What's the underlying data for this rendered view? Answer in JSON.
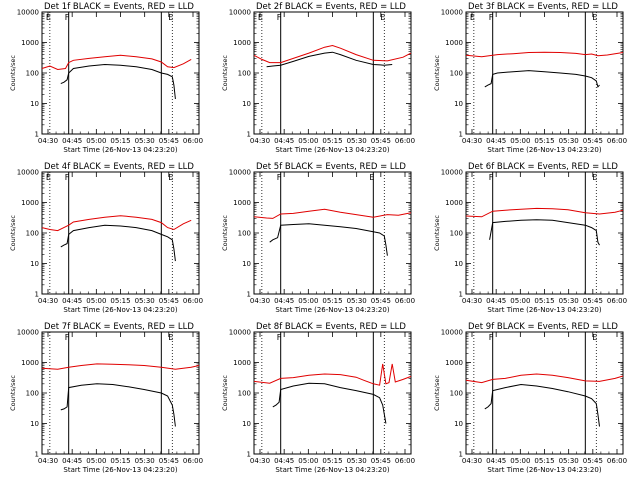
{
  "page": {
    "background": "#ffffff"
  },
  "colors": {
    "events": "#000000",
    "lld": "#e00000"
  },
  "chart_data": [
    {
      "type": "line",
      "title": "Det 1f BLACK = Events, RED = LLD",
      "xlabel": "Start Time (26-Nov-13 04:23:20)",
      "ylabel": "Counts/sec",
      "x_ticks": [
        "04:30",
        "04:45",
        "05:00",
        "05:15",
        "05:30",
        "05:45",
        "06:00"
      ],
      "y_ticks": [
        "1",
        "10",
        "100",
        "1000",
        "10000"
      ],
      "ylim": [
        1,
        10000
      ],
      "log_y": true,
      "xlim_min": [
        0,
        100
      ],
      "markers": [
        {
          "t": 5,
          "label": "E",
          "style": "dotted"
        },
        {
          "t": 17,
          "label": "F",
          "style": "solid"
        },
        {
          "t": 76,
          "label": "",
          "style": "solid"
        },
        {
          "t": 83,
          "label": "E",
          "style": "dotted"
        }
      ],
      "series": [
        {
          "color": "#e00000",
          "x": [
            0,
            5,
            10,
            15,
            17,
            20,
            30,
            40,
            50,
            60,
            70,
            76,
            80,
            84,
            90,
            95
          ],
          "y": [
            140,
            170,
            130,
            140,
            220,
            260,
            300,
            340,
            380,
            340,
            290,
            230,
            160,
            150,
            200,
            280
          ]
        },
        {
          "color": "#000000",
          "x": [
            12,
            14,
            16,
            17,
            20,
            30,
            40,
            50,
            60,
            70,
            76,
            80,
            83,
            84,
            85
          ],
          "y": [
            45,
            50,
            60,
            100,
            140,
            170,
            190,
            180,
            160,
            130,
            100,
            90,
            75,
            40,
            14
          ]
        }
      ]
    },
    {
      "type": "line",
      "title": "Det 2f BLACK = Events, RED = LLD",
      "xlabel": "Start Time (26-Nov-13 04:23:20)",
      "ylabel": "Counts/sec",
      "x_ticks": [
        "04:30",
        "04:45",
        "05:00",
        "05:15",
        "05:30",
        "05:45",
        "06:00"
      ],
      "y_ticks": [
        "1",
        "10",
        "100",
        "1000",
        "10000"
      ],
      "ylim": [
        1,
        10000
      ],
      "log_y": true,
      "xlim_min": [
        0,
        100
      ],
      "markers": [
        {
          "t": 5,
          "label": "E",
          "style": "dotted"
        },
        {
          "t": 17,
          "label": "F",
          "style": "solid"
        },
        {
          "t": 76,
          "label": "",
          "style": "solid"
        },
        {
          "t": 83,
          "label": "E",
          "style": "dotted"
        }
      ],
      "series": [
        {
          "color": "#e00000",
          "x": [
            0,
            5,
            10,
            17,
            25,
            35,
            45,
            50,
            55,
            65,
            76,
            85,
            95,
            100
          ],
          "y": [
            380,
            280,
            220,
            220,
            300,
            450,
            700,
            800,
            650,
            400,
            260,
            250,
            330,
            450
          ]
        },
        {
          "color": "#000000",
          "x": [
            8,
            12,
            17,
            25,
            35,
            45,
            50,
            55,
            65,
            76,
            83,
            88
          ],
          "y": [
            160,
            170,
            180,
            240,
            350,
            450,
            480,
            400,
            260,
            190,
            180,
            190
          ]
        }
      ]
    },
    {
      "type": "line",
      "title": "Det 3f BLACK = Events, RED = LLD",
      "xlabel": "Start Time (26-Nov-13 04:23:20)",
      "ylabel": "Counts/sec",
      "x_ticks": [
        "04:30",
        "04:45",
        "05:00",
        "05:15",
        "05:30",
        "05:45",
        "06:00"
      ],
      "y_ticks": [
        "1",
        "10",
        "100",
        "1000",
        "10000"
      ],
      "ylim": [
        1,
        10000
      ],
      "log_y": true,
      "xlim_min": [
        0,
        100
      ],
      "markers": [
        {
          "t": 5,
          "label": "E",
          "style": "dotted"
        },
        {
          "t": 17,
          "label": "F",
          "style": "solid"
        },
        {
          "t": 76,
          "label": "",
          "style": "solid"
        },
        {
          "t": 83,
          "label": "E",
          "style": "dotted"
        }
      ],
      "series": [
        {
          "color": "#e00000",
          "x": [
            0,
            10,
            20,
            30,
            40,
            50,
            60,
            70,
            76,
            80,
            84,
            90,
            95,
            100
          ],
          "y": [
            380,
            340,
            400,
            430,
            470,
            480,
            470,
            440,
            400,
            420,
            370,
            390,
            430,
            470
          ]
        },
        {
          "color": "#000000",
          "x": [
            12,
            14,
            16,
            17,
            20,
            30,
            40,
            50,
            60,
            70,
            76,
            80,
            83,
            84,
            85
          ],
          "y": [
            35,
            40,
            45,
            90,
            100,
            110,
            120,
            110,
            100,
            90,
            80,
            70,
            55,
            35,
            40
          ]
        }
      ]
    },
    {
      "type": "line",
      "title": "Det 4f BLACK = Events, RED = LLD",
      "xlabel": "Start Time (26-Nov-13 04:23:20)",
      "ylabel": "Counts/sec",
      "x_ticks": [
        "04:30",
        "04:45",
        "05:00",
        "05:15",
        "05:30",
        "05:45",
        "06:00"
      ],
      "y_ticks": [
        "1",
        "10",
        "100",
        "1000",
        "10000"
      ],
      "ylim": [
        1,
        10000
      ],
      "log_y": true,
      "xlim_min": [
        0,
        100
      ],
      "markers": [
        {
          "t": 5,
          "label": "E",
          "style": "dotted"
        },
        {
          "t": 17,
          "label": "F",
          "style": "solid"
        },
        {
          "t": 76,
          "label": "",
          "style": "solid"
        },
        {
          "t": 83,
          "label": "E",
          "style": "dotted"
        }
      ],
      "series": [
        {
          "color": "#e00000",
          "x": [
            0,
            5,
            10,
            17,
            20,
            30,
            40,
            50,
            60,
            70,
            76,
            80,
            84,
            90,
            95
          ],
          "y": [
            150,
            130,
            120,
            180,
            230,
            280,
            330,
            370,
            330,
            280,
            220,
            150,
            130,
            200,
            260
          ]
        },
        {
          "color": "#000000",
          "x": [
            12,
            14,
            16,
            17,
            20,
            30,
            40,
            50,
            60,
            70,
            76,
            80,
            83,
            84,
            85
          ],
          "y": [
            35,
            40,
            45,
            90,
            120,
            150,
            180,
            170,
            150,
            120,
            90,
            75,
            60,
            30,
            12
          ]
        }
      ]
    },
    {
      "type": "line",
      "title": "Det 5f BLACK = Events, RED = LLD",
      "xlabel": "Start Time (26-Nov-13 04:23:20)",
      "ylabel": "Counts/sec",
      "x_ticks": [
        "04:30",
        "04:45",
        "05:00",
        "05:15",
        "05:30",
        "05:45",
        "06:00"
      ],
      "y_ticks": [
        "1",
        "10",
        "100",
        "1000",
        "10000"
      ],
      "ylim": [
        1,
        10000
      ],
      "log_y": true,
      "xlim_min": [
        0,
        100
      ],
      "markers": [
        {
          "t": 5,
          "label": "",
          "style": "dotted"
        },
        {
          "t": 17,
          "label": "F",
          "style": "solid"
        },
        {
          "t": 76,
          "label": "E",
          "style": "solid"
        },
        {
          "t": 83,
          "label": "",
          "style": "dotted"
        }
      ],
      "series": [
        {
          "color": "#e00000",
          "x": [
            0,
            8,
            12,
            17,
            25,
            35,
            45,
            55,
            65,
            76,
            85,
            92,
            100
          ],
          "y": [
            340,
            310,
            300,
            420,
            440,
            520,
            600,
            480,
            400,
            330,
            400,
            380,
            460
          ]
        },
        {
          "color": "#000000",
          "x": [
            10,
            12,
            15,
            17,
            25,
            35,
            45,
            55,
            65,
            76,
            80,
            83,
            84,
            85
          ],
          "y": [
            50,
            60,
            70,
            180,
            190,
            200,
            180,
            160,
            140,
            110,
            100,
            80,
            40,
            18
          ]
        }
      ]
    },
    {
      "type": "line",
      "title": "Det 6f BLACK = Events, RED = LLD",
      "xlabel": "Start Time (26-Nov-13 04:23:20)",
      "ylabel": "Counts/sec",
      "x_ticks": [
        "04:30",
        "04:45",
        "05:00",
        "05:15",
        "05:30",
        "05:45",
        "06:00"
      ],
      "y_ticks": [
        "1",
        "10",
        "100",
        "1000",
        "10000"
      ],
      "ylim": [
        1,
        10000
      ],
      "log_y": true,
      "xlim_min": [
        0,
        100
      ],
      "markers": [
        {
          "t": 5,
          "label": "",
          "style": "dotted"
        },
        {
          "t": 17,
          "label": "F",
          "style": "solid"
        },
        {
          "t": 76,
          "label": "",
          "style": "solid"
        },
        {
          "t": 83,
          "label": "E",
          "style": "dotted"
        }
      ],
      "series": [
        {
          "color": "#e00000",
          "x": [
            0,
            10,
            17,
            25,
            35,
            45,
            55,
            65,
            76,
            85,
            95,
            100
          ],
          "y": [
            360,
            340,
            520,
            560,
            600,
            640,
            620,
            580,
            460,
            420,
            480,
            560
          ]
        },
        {
          "color": "#000000",
          "x": [
            15,
            17,
            25,
            35,
            45,
            55,
            65,
            76,
            80,
            83,
            84,
            85
          ],
          "y": [
            60,
            220,
            240,
            260,
            270,
            260,
            220,
            180,
            150,
            120,
            50,
            40
          ]
        }
      ]
    },
    {
      "type": "line",
      "title": "Det 7f BLACK = Events, RED = LLD",
      "xlabel": "Start Time (26-Nov-13 04:23:20)",
      "ylabel": "Counts/sec",
      "x_ticks": [
        "04:30",
        "04:45",
        "05:00",
        "05:15",
        "05:30",
        "05:45",
        "06:00"
      ],
      "y_ticks": [
        "1",
        "10",
        "100",
        "1000",
        "10000"
      ],
      "ylim": [
        1,
        10000
      ],
      "log_y": true,
      "xlim_min": [
        0,
        100
      ],
      "markers": [
        {
          "t": 5,
          "label": "",
          "style": "dotted"
        },
        {
          "t": 17,
          "label": "F",
          "style": "solid"
        },
        {
          "t": 76,
          "label": "",
          "style": "solid"
        },
        {
          "t": 83,
          "label": "E",
          "style": "dotted"
        }
      ],
      "series": [
        {
          "color": "#e00000",
          "x": [
            0,
            10,
            17,
            25,
            35,
            45,
            55,
            65,
            76,
            85,
            95,
            100
          ],
          "y": [
            650,
            600,
            700,
            800,
            900,
            880,
            840,
            800,
            700,
            600,
            700,
            800
          ]
        },
        {
          "color": "#000000",
          "x": [
            12,
            14,
            16,
            17,
            25,
            35,
            45,
            55,
            65,
            76,
            80,
            83,
            84,
            85
          ],
          "y": [
            28,
            30,
            35,
            150,
            180,
            200,
            190,
            160,
            130,
            100,
            80,
            40,
            20,
            8
          ]
        }
      ]
    },
    {
      "type": "line",
      "title": "Det 8f BLACK = Events, RED = LLD",
      "xlabel": "Start Time (26-Nov-13 04:23:20)",
      "ylabel": "Counts/sec",
      "x_ticks": [
        "04:30",
        "04:45",
        "05:00",
        "05:15",
        "05:30",
        "05:45",
        "06:00"
      ],
      "y_ticks": [
        "1",
        "10",
        "100",
        "1000",
        "10000"
      ],
      "ylim": [
        1,
        10000
      ],
      "log_y": true,
      "xlim_min": [
        0,
        100
      ],
      "markers": [
        {
          "t": 5,
          "label": "",
          "style": "dotted"
        },
        {
          "t": 17,
          "label": "F",
          "style": "solid"
        },
        {
          "t": 76,
          "label": "",
          "style": "solid"
        },
        {
          "t": 83,
          "label": "",
          "style": "dotted"
        }
      ],
      "series": [
        {
          "color": "#e00000",
          "x": [
            0,
            10,
            17,
            25,
            35,
            45,
            55,
            65,
            70,
            76,
            80,
            82,
            84,
            86,
            88,
            90,
            95,
            100
          ],
          "y": [
            240,
            210,
            300,
            320,
            380,
            420,
            400,
            330,
            260,
            200,
            180,
            900,
            200,
            220,
            900,
            230,
            280,
            350
          ]
        },
        {
          "color": "#000000",
          "x": [
            12,
            14,
            16,
            17,
            25,
            35,
            45,
            55,
            65,
            76,
            80,
            82,
            83,
            84
          ],
          "y": [
            35,
            40,
            50,
            130,
            170,
            210,
            200,
            150,
            120,
            90,
            70,
            40,
            20,
            10
          ]
        }
      ]
    },
    {
      "type": "line",
      "title": "Det 9f BLACK = Events, RED = LLD",
      "xlabel": "Start Time (26-Nov-13 04:23:20)",
      "ylabel": "Counts/sec",
      "x_ticks": [
        "04:30",
        "04:45",
        "05:00",
        "05:15",
        "05:30",
        "05:45",
        "06:00"
      ],
      "y_ticks": [
        "1",
        "10",
        "100",
        "1000",
        "10000"
      ],
      "ylim": [
        1,
        10000
      ],
      "log_y": true,
      "xlim_min": [
        0,
        100
      ],
      "markers": [
        {
          "t": 5,
          "label": "",
          "style": "dotted"
        },
        {
          "t": 17,
          "label": "F",
          "style": "solid"
        },
        {
          "t": 76,
          "label": "",
          "style": "solid"
        },
        {
          "t": 83,
          "label": "E",
          "style": "dotted"
        }
      ],
      "series": [
        {
          "color": "#e00000",
          "x": [
            0,
            10,
            17,
            25,
            35,
            45,
            55,
            65,
            76,
            85,
            95,
            100
          ],
          "y": [
            260,
            220,
            280,
            300,
            380,
            420,
            380,
            320,
            250,
            240,
            300,
            360
          ]
        },
        {
          "color": "#000000",
          "x": [
            12,
            14,
            16,
            17,
            25,
            35,
            45,
            55,
            65,
            76,
            80,
            83,
            84,
            85
          ],
          "y": [
            30,
            35,
            45,
            120,
            150,
            190,
            170,
            140,
            110,
            80,
            65,
            45,
            20,
            8
          ]
        }
      ]
    }
  ]
}
